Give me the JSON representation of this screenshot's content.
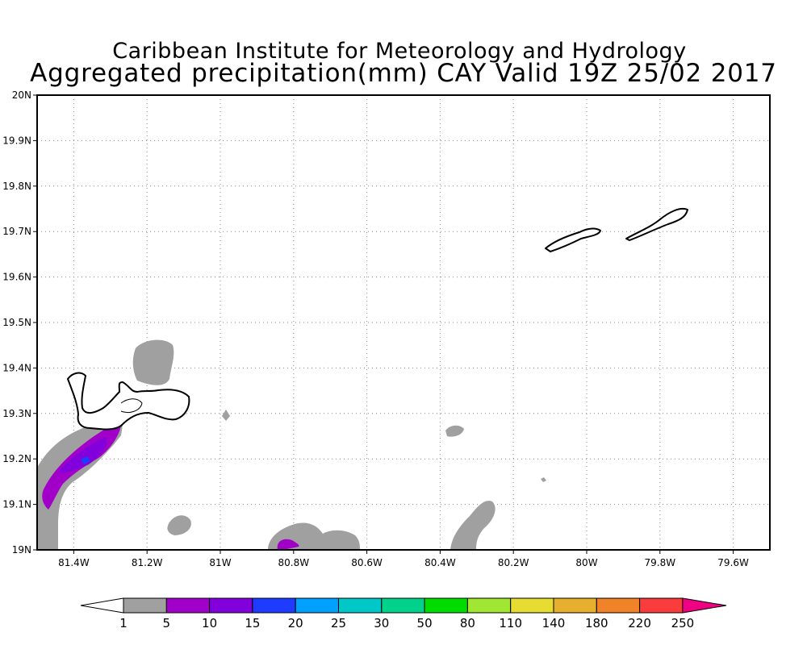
{
  "header": {
    "line1": "Caribbean Institute for Meteorology and Hydrology",
    "line2": "Aggregated precipitation(mm) CAY Valid 19Z 25/02 2017"
  },
  "map": {
    "region": "CAY",
    "lon_range": [
      -81.5,
      -79.5
    ],
    "lat_range": [
      19.0,
      20.0
    ],
    "grid": true,
    "lon_ticks": [
      {
        "value": -81.4,
        "label": "81.4W"
      },
      {
        "value": -81.2,
        "label": "81.2W"
      },
      {
        "value": -81.0,
        "label": "81W"
      },
      {
        "value": -80.8,
        "label": "80.8W"
      },
      {
        "value": -80.6,
        "label": "80.6W"
      },
      {
        "value": -80.4,
        "label": "80.4W"
      },
      {
        "value": -80.2,
        "label": "80.2W"
      },
      {
        "value": -80.0,
        "label": "80W"
      },
      {
        "value": -79.8,
        "label": "79.8W"
      },
      {
        "value": -79.6,
        "label": "79.6W"
      }
    ],
    "lat_ticks": [
      {
        "value": 19.0,
        "label": "19N"
      },
      {
        "value": 19.1,
        "label": "19.1N"
      },
      {
        "value": 19.2,
        "label": "19.2N"
      },
      {
        "value": 19.3,
        "label": "19.3N"
      },
      {
        "value": 19.4,
        "label": "19.4N"
      },
      {
        "value": 19.5,
        "label": "19.5N"
      },
      {
        "value": 19.6,
        "label": "19.6N"
      },
      {
        "value": 19.7,
        "label": "19.7N"
      },
      {
        "value": 19.8,
        "label": "19.8N"
      },
      {
        "value": 19.9,
        "label": "19.9N"
      },
      {
        "value": 20.0,
        "label": "20N"
      }
    ]
  },
  "colorbar": {
    "levels": [
      "1",
      "5",
      "10",
      "15",
      "20",
      "25",
      "30",
      "50",
      "80",
      "110",
      "140",
      "180",
      "220",
      "250"
    ],
    "colors": [
      "#ffffff",
      "#a0a0a0",
      "#a000c8",
      "#8200dc",
      "#1e3cff",
      "#00a0ff",
      "#00c8c8",
      "#00d28c",
      "#00dc00",
      "#a0e632",
      "#e6dc32",
      "#e6af2d",
      "#f08228",
      "#fa3c3c",
      "#f00082"
    ]
  }
}
